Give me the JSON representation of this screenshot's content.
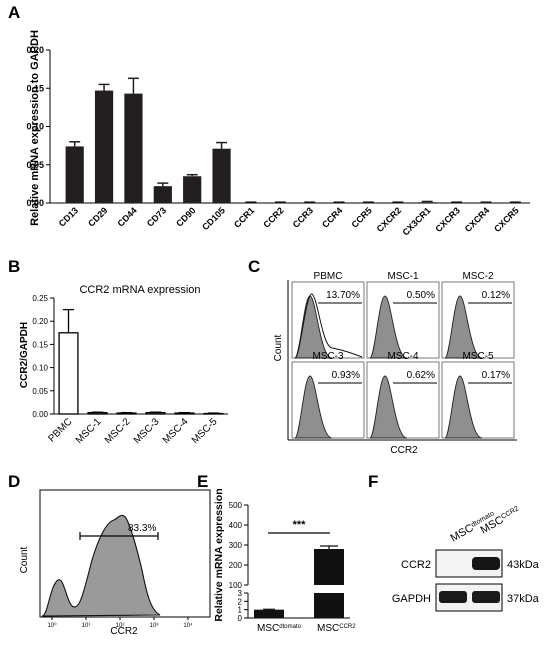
{
  "chart_data": [
    {
      "panel": "A",
      "type": "bar",
      "title": "",
      "xlabel": "",
      "ylabel": "Relative mRNA expression to GAPDH",
      "ylim": [
        0,
        0.2
      ],
      "yticks": [
        "0.00",
        "0.05",
        "0.10",
        "0.15",
        "0.20"
      ],
      "categories": [
        "CD13",
        "CD29",
        "CD44",
        "CD73",
        "CD90",
        "CD105",
        "CCR1",
        "CCR2",
        "CCR3",
        "CCR4",
        "CCR5",
        "CXCR2",
        "CX3CR1",
        "CXCR3",
        "CXCR4",
        "CXCR5"
      ],
      "values": [
        0.074,
        0.147,
        0.143,
        0.022,
        0.035,
        0.071,
        0,
        0,
        0,
        0,
        0,
        0,
        0.001,
        0,
        0,
        0
      ],
      "errors": [
        0.006,
        0.008,
        0.02,
        0.004,
        0.002,
        0.008,
        0,
        0,
        0,
        0,
        0,
        0,
        0.001,
        0,
        0.001,
        0
      ],
      "color": "#231f20"
    },
    {
      "panel": "B",
      "type": "bar",
      "title": "CCR2 mRNA expression",
      "xlabel": "",
      "ylabel": "CCR2/GAPDH",
      "ylim": [
        0,
        0.25
      ],
      "yticks": [
        "0.00",
        "0.05",
        "0.10",
        "0.15",
        "0.20",
        "0.25"
      ],
      "categories": [
        "PBMC",
        "MSC-1",
        "MSC-2",
        "MSC-3",
        "MSC-4",
        "MSC-5"
      ],
      "values": [
        0.175,
        0.003,
        0.002,
        0.003,
        0.002,
        0.001
      ],
      "errors": [
        0.05,
        0.001,
        0.001,
        0.001,
        0.001,
        0.001
      ]
    },
    {
      "panel": "C",
      "type": "histogram-grid",
      "xlabel": "CCR2",
      "ylabel": "Count",
      "cells": [
        {
          "name": "PBMC",
          "pct": "13.70%"
        },
        {
          "name": "MSC-1",
          "pct": "0.50%"
        },
        {
          "name": "MSC-2",
          "pct": "0.12%"
        },
        {
          "name": "MSC-3",
          "pct": "0.93%"
        },
        {
          "name": "MSC-4",
          "pct": "0.62%"
        },
        {
          "name": "MSC-5",
          "pct": "0.17%"
        }
      ]
    },
    {
      "panel": "D",
      "type": "histogram",
      "xlabel": "CCR2",
      "ylabel": "Count",
      "gate_pct": "83.3%",
      "xticks": [
        "10⁰",
        "10¹",
        "10²",
        "10³",
        "10⁴"
      ]
    },
    {
      "panel": "E",
      "type": "bar",
      "title": "",
      "ylabel": "Relative mRNA expression",
      "yticks_lower": [
        "0",
        "1",
        "2",
        "3"
      ],
      "yticks_upper": [
        "100",
        "200",
        "300",
        "400",
        "500"
      ],
      "categories": [
        "MSC",
        "MSC"
      ],
      "category_sup": [
        "dtomato",
        "CCR2"
      ],
      "values": [
        1.0,
        280
      ],
      "errors": [
        0.05,
        15
      ],
      "significance": "***"
    },
    {
      "panel": "F",
      "type": "western-blot",
      "lanes": [
        "MSC",
        "MSC"
      ],
      "lane_sup": [
        "dtomato",
        "CCR2"
      ],
      "rows": [
        {
          "label": "CCR2",
          "size": "43kDa"
        },
        {
          "label": "GAPDH",
          "size": "37kDa"
        }
      ]
    }
  ],
  "panels": {
    "A": "A",
    "B": "B",
    "C": "C",
    "D": "D",
    "E": "E",
    "F": "F"
  }
}
